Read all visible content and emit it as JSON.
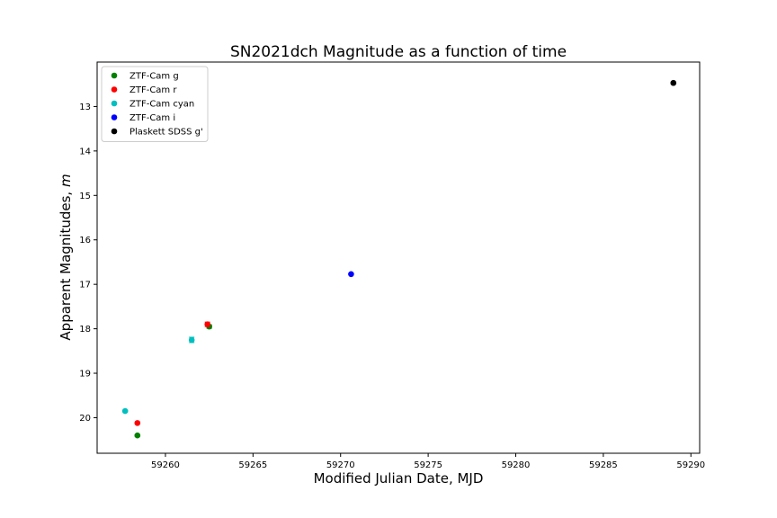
{
  "chart_data": {
    "type": "scatter",
    "title": "SN2021dch Magnitude as a function of time",
    "xlabel": "Modified Julian Date, MJD",
    "ylabel": "Apparent Magnitudes, m",
    "xlim": [
      59256.1,
      59290.5
    ],
    "ylim": [
      20.8,
      12.0
    ],
    "y_inverted": true,
    "xticks": [
      59260,
      59265,
      59270,
      59275,
      59280,
      59285,
      59290
    ],
    "yticks": [
      13,
      14,
      15,
      16,
      17,
      18,
      19,
      20
    ],
    "grid": false,
    "legend_position": "top-left",
    "series": [
      {
        "name": "ZTF-Cam g",
        "color": "#008000",
        "x": [
          59258.4,
          59262.5
        ],
        "y": [
          20.4,
          17.95
        ],
        "yerr": [
          0.02,
          0.04
        ]
      },
      {
        "name": "ZTF-Cam r",
        "color": "#ff0000",
        "x": [
          59258.4,
          59262.4
        ],
        "y": [
          20.12,
          17.9
        ],
        "yerr": [
          0.02,
          0.05
        ]
      },
      {
        "name": "ZTF-Cam cyan",
        "color": "#00bfbf",
        "x": [
          59257.7,
          59261.5
        ],
        "y": [
          19.85,
          18.25
        ],
        "yerr": [
          0.02,
          0.06
        ]
      },
      {
        "name": "ZTF-Cam i",
        "color": "#0000ff",
        "x": [
          59270.6
        ],
        "y": [
          16.77
        ],
        "yerr": [
          0.02
        ]
      },
      {
        "name": "Plaskett SDSS g'",
        "color": "#000000",
        "x": [
          59289.0
        ],
        "y": [
          12.47
        ],
        "yerr": [
          0.02
        ]
      }
    ]
  }
}
